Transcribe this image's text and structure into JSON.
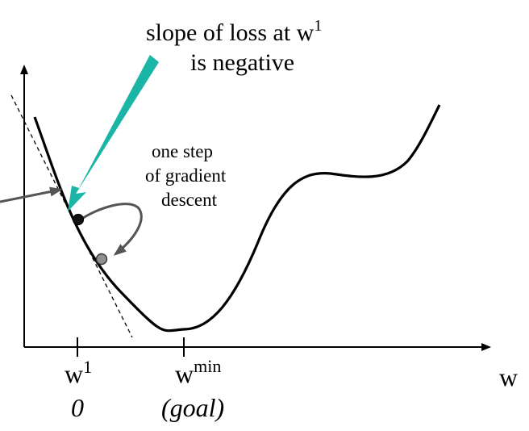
{
  "annotations": {
    "slope_line1": "slope of loss at w",
    "slope_sup": "1",
    "slope_line2": "is negative",
    "step_line1": "one step",
    "step_line2": "of gradient",
    "step_line3": "descent"
  },
  "axis": {
    "x_label": "w",
    "w1_base": "w",
    "w1_sup": "1",
    "wmin_base": "w",
    "wmin_sup": "min",
    "w1_sub_label": "0",
    "wmin_sub_label": "(goal)"
  },
  "colors": {
    "callout_arrow": "#1ab5a6",
    "curve": "#000000",
    "point_current": "#111111",
    "point_next": "#8f8f8f",
    "step_arrow": "#555555"
  }
}
